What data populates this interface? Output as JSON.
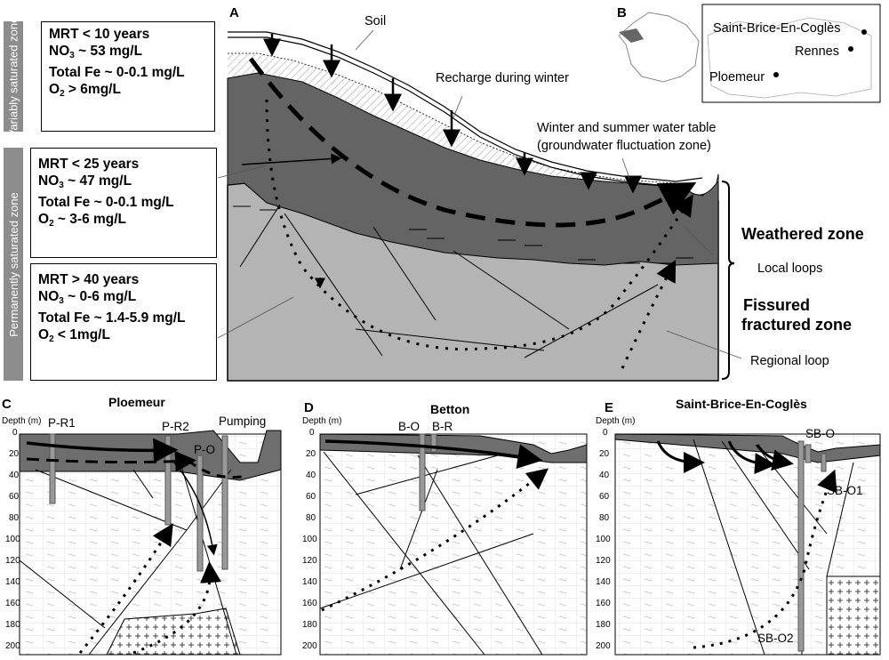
{
  "panel_a": {
    "letter": "A",
    "zones": {
      "variably": "Variably saturated zone",
      "permanent": "Permanently saturated zone"
    },
    "boxes": [
      {
        "mrt": "MRT < 10 years",
        "no3_pre": "NO",
        "no3_sub": "3",
        "no3_post": " ~ 53 mg/L",
        "fe": "Total Fe ~ 0-0.1 mg/L",
        "o2_pre": "O",
        "o2_sub": "2",
        "o2_post": " > 6mg/L"
      },
      {
        "mrt": "MRT < 25 years",
        "no3_pre": "NO",
        "no3_sub": "3",
        "no3_post": " ~ 47 mg/L",
        "fe": "Total Fe ~ 0-0.1 mg/L",
        "o2_pre": "O",
        "o2_sub": "2",
        "o2_post": " ~ 3-6 mg/L"
      },
      {
        "mrt": "MRT > 40 years",
        "no3_pre": "NO",
        "no3_sub": "3",
        "no3_post": " ~ 0-6 mg/L",
        "fe": "Total Fe ~ 1.4-5.9 mg/L",
        "o2_pre": "O",
        "o2_sub": "2",
        "o2_post": " < 1mg/L"
      }
    ],
    "labels": {
      "soil": "Soil",
      "recharge": "Recharge during winter",
      "water_table_1": "Winter and summer water table",
      "water_table_2": "(groundwater fluctuation zone)",
      "weathered": "Weathered zone",
      "local_loops": "Local loops",
      "fissured_1": "Fissured",
      "fissured_2": "fractured zone",
      "regional_loop": "Regional loop"
    }
  },
  "panel_b": {
    "letter": "B",
    "places": [
      "Saint-Brice-En-Coglès",
      "Rennes",
      "Ploemeur"
    ]
  },
  "sections": [
    {
      "letter": "C",
      "title": "Ploemeur",
      "wells": [
        "P-R1",
        "P-R2",
        "P-O"
      ],
      "extra": "Pumping"
    },
    {
      "letter": "D",
      "title": "Betton",
      "wells": [
        "B-O",
        "B-R"
      ]
    },
    {
      "letter": "E",
      "title": "Saint-Brice-En-Coglès",
      "wells": [
        "SB-O",
        "SB-O1",
        "SB-O2"
      ]
    }
  ],
  "depth_axis": {
    "title": "Depth (m)",
    "ticks": [
      "0",
      "20",
      "40",
      "60",
      "80",
      "100",
      "120",
      "140",
      "160",
      "180",
      "200"
    ]
  },
  "colors": {
    "zone_bar": "#8c8c8c",
    "weathered": "#646464",
    "fissured": "#b4b4b4",
    "section_rock": "#6e6e6e"
  }
}
